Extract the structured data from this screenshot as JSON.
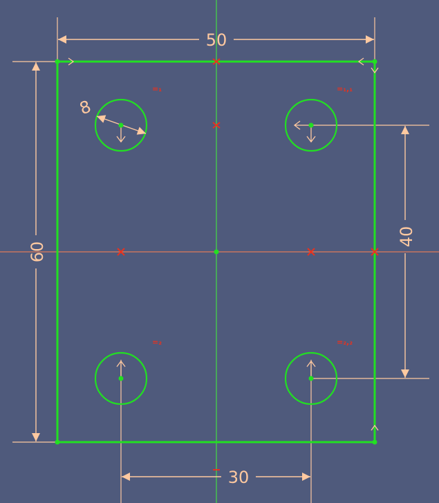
{
  "colors": {
    "background": "#4f5a7c",
    "geometry": "#22e022",
    "dimension": "#ffc9a0",
    "constraint": "#e8321e",
    "axis_h": "#e07a5a",
    "axis_v": "#44dd44"
  },
  "dimensions": {
    "width": "50",
    "height": "60",
    "hole_spacing_vertical": "40",
    "hole_spacing_horizontal": "30",
    "hole_diameter": "8"
  },
  "constraints": {
    "hole_top_left": "=₁",
    "hole_top_right": "=₁,₁",
    "hole_bottom_left": "=₂",
    "hole_bottom_right": "=₂,₂"
  }
}
